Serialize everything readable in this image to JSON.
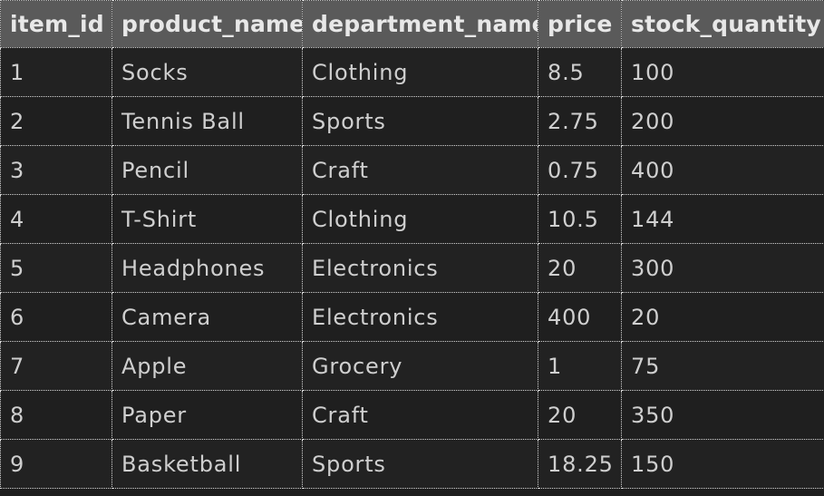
{
  "table": {
    "columns": [
      "item_id",
      "product_name",
      "department_name",
      "price",
      "stock_quantity"
    ],
    "rows": [
      [
        "1",
        "Socks",
        "Clothing",
        "8.5",
        "100"
      ],
      [
        "2",
        "Tennis Ball",
        "Sports",
        "2.75",
        "200"
      ],
      [
        "3",
        "Pencil",
        "Craft",
        "0.75",
        "400"
      ],
      [
        "4",
        "T-Shirt",
        "Clothing",
        "10.5",
        "144"
      ],
      [
        "5",
        "Headphones",
        "Electronics",
        "20",
        "300"
      ],
      [
        "6",
        "Camera",
        "Electronics",
        "400",
        "20"
      ],
      [
        "7",
        "Apple",
        "Grocery",
        "1",
        "75"
      ],
      [
        "8",
        "Paper",
        "Craft",
        "20",
        "350"
      ],
      [
        "9",
        "Basketball",
        "Sports",
        "18.25",
        "150"
      ]
    ]
  },
  "colors": {
    "background": "#1e1e1e",
    "header_background": "#5a5a5a",
    "header_text": "#e8e8e8",
    "cell_text": "#cfcfcf",
    "grid_line": "#d8d8d8"
  }
}
